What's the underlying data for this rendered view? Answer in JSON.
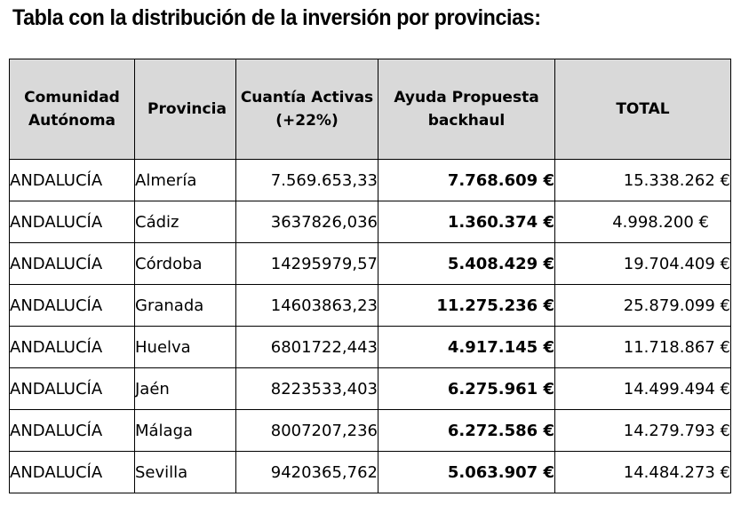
{
  "title": "Tabla con la distribución de la inversión por provincias:",
  "headers": {
    "comunidad_line1": "Comunidad",
    "comunidad_line2": "Autónoma",
    "provincia": "Provincia",
    "cuantia_line1": "Cuantía Activas",
    "cuantia_line2": "(+22%)",
    "ayuda_line1": "Ayuda Propuesta",
    "ayuda_line2": "backhaul",
    "total": "TOTAL"
  },
  "rows": [
    {
      "comunidad": "ANDALUCÍA",
      "provincia": "Almería",
      "cuantia": "7.569.653,33",
      "ayuda": "7.768.609 €",
      "total": "15.338.262 €"
    },
    {
      "comunidad": "ANDALUCÍA",
      "provincia": "Cádiz",
      "cuantia": "3637826,036",
      "ayuda": "1.360.374 €",
      "total": "4.998.200 €"
    },
    {
      "comunidad": "ANDALUCÍA",
      "provincia": "Córdoba",
      "cuantia": "14295979,57",
      "ayuda": "5.408.429 €",
      "total": "19.704.409 €"
    },
    {
      "comunidad": "ANDALUCÍA",
      "provincia": "Granada",
      "cuantia": "14603863,23",
      "ayuda": "11.275.236 €",
      "total": "25.879.099 €"
    },
    {
      "comunidad": "ANDALUCÍA",
      "provincia": "Huelva",
      "cuantia": "6801722,443",
      "ayuda": "4.917.145 €",
      "total": "11.718.867 €"
    },
    {
      "comunidad": "ANDALUCÍA",
      "provincia": "Jaén",
      "cuantia": "8223533,403",
      "ayuda": "6.275.961 €",
      "total": "14.499.494 €"
    },
    {
      "comunidad": "ANDALUCÍA",
      "provincia": "Málaga",
      "cuantia": "8007207,236",
      "ayuda": "6.272.586 €",
      "total": "14.279.793 €"
    },
    {
      "comunidad": "ANDALUCÍA",
      "provincia": "Sevilla",
      "cuantia": "9420365,762",
      "ayuda": "5.063.907 €",
      "total": "14.484.273 €"
    }
  ]
}
